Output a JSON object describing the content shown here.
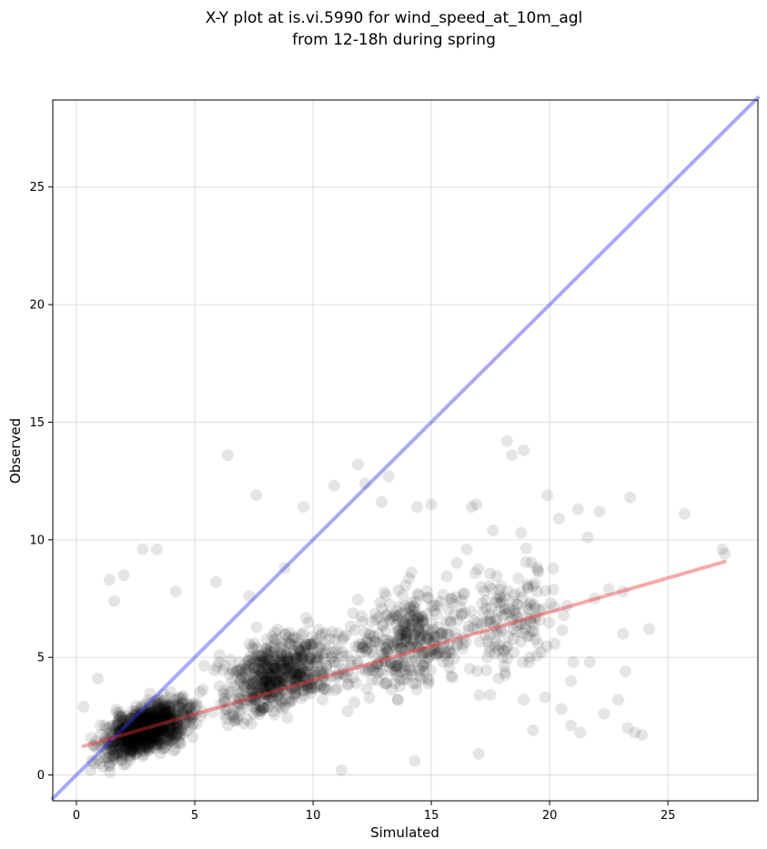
{
  "chart_data": {
    "type": "scatter",
    "title_line1": "X-Y plot at is.vi.5990 for wind_speed_at_10m_agl",
    "title_line2": "from 12-18h during spring",
    "xlabel": "Simulated",
    "ylabel": "Observed",
    "xlim": [
      -1.0,
      28.8
    ],
    "ylim": [
      -1.1,
      28.7
    ],
    "xticks": [
      0,
      5,
      10,
      15,
      20,
      25
    ],
    "yticks": [
      0,
      5,
      10,
      15,
      20,
      25
    ],
    "grid": true,
    "colors": {
      "points": "#000000",
      "one_to_one": "#3333ee",
      "regression": "#ee3333",
      "grid": "#dddddd"
    },
    "one_to_one_line": {
      "x": [
        -1.0,
        28.8
      ],
      "y": [
        -1.0,
        28.8
      ]
    },
    "regression_line": {
      "x": [
        0.3,
        27.4
      ],
      "y": [
        1.22,
        9.07
      ]
    },
    "outliers": [
      [
        6.4,
        13.6
      ],
      [
        18.2,
        14.2
      ],
      [
        18.9,
        13.8
      ],
      [
        18.4,
        13.6
      ],
      [
        11.9,
        13.2
      ],
      [
        23.4,
        11.8
      ],
      [
        25.7,
        11.1
      ],
      [
        19.9,
        11.9
      ],
      [
        27.3,
        9.6
      ],
      [
        27.4,
        9.4
      ],
      [
        2.8,
        9.6
      ],
      [
        3.4,
        9.6
      ],
      [
        1.4,
        8.3
      ],
      [
        2.0,
        8.5
      ],
      [
        1.6,
        7.4
      ],
      [
        7.6,
        11.9
      ],
      [
        13.2,
        12.7
      ],
      [
        12.2,
        12.4
      ],
      [
        15.0,
        11.5
      ],
      [
        16.7,
        11.4
      ],
      [
        21.2,
        11.3
      ],
      [
        22.1,
        11.2
      ],
      [
        21.6,
        10.1
      ],
      [
        20.4,
        10.9
      ],
      [
        24.2,
        6.2
      ],
      [
        23.1,
        6.0
      ],
      [
        23.2,
        4.4
      ],
      [
        23.3,
        2.0
      ],
      [
        23.6,
        1.8
      ],
      [
        23.9,
        1.7
      ],
      [
        20.5,
        2.8
      ],
      [
        20.9,
        2.1
      ],
      [
        21.3,
        1.8
      ],
      [
        17.0,
        0.9
      ],
      [
        14.3,
        0.6
      ],
      [
        11.2,
        0.2
      ],
      [
        21.9,
        7.5
      ],
      [
        22.5,
        7.9
      ],
      [
        23.1,
        7.8
      ],
      [
        19.5,
        8.7
      ],
      [
        18.8,
        10.3
      ],
      [
        17.6,
        10.4
      ],
      [
        16.5,
        9.6
      ],
      [
        5.9,
        8.2
      ],
      [
        4.2,
        7.8
      ],
      [
        7.3,
        7.6
      ],
      [
        8.8,
        8.8
      ],
      [
        9.6,
        11.4
      ],
      [
        10.9,
        12.3
      ],
      [
        12.9,
        11.6
      ],
      [
        14.4,
        11.4
      ],
      [
        16.9,
        11.5
      ],
      [
        20.9,
        4.0
      ],
      [
        21.0,
        4.8
      ],
      [
        21.7,
        4.8
      ],
      [
        22.9,
        3.2
      ],
      [
        22.3,
        2.6
      ],
      [
        19.8,
        3.3
      ],
      [
        18.9,
        3.2
      ],
      [
        19.3,
        1.9
      ],
      [
        0.3,
        2.9
      ],
      [
        0.6,
        0.2
      ],
      [
        0.9,
        4.1
      ]
    ]
  }
}
